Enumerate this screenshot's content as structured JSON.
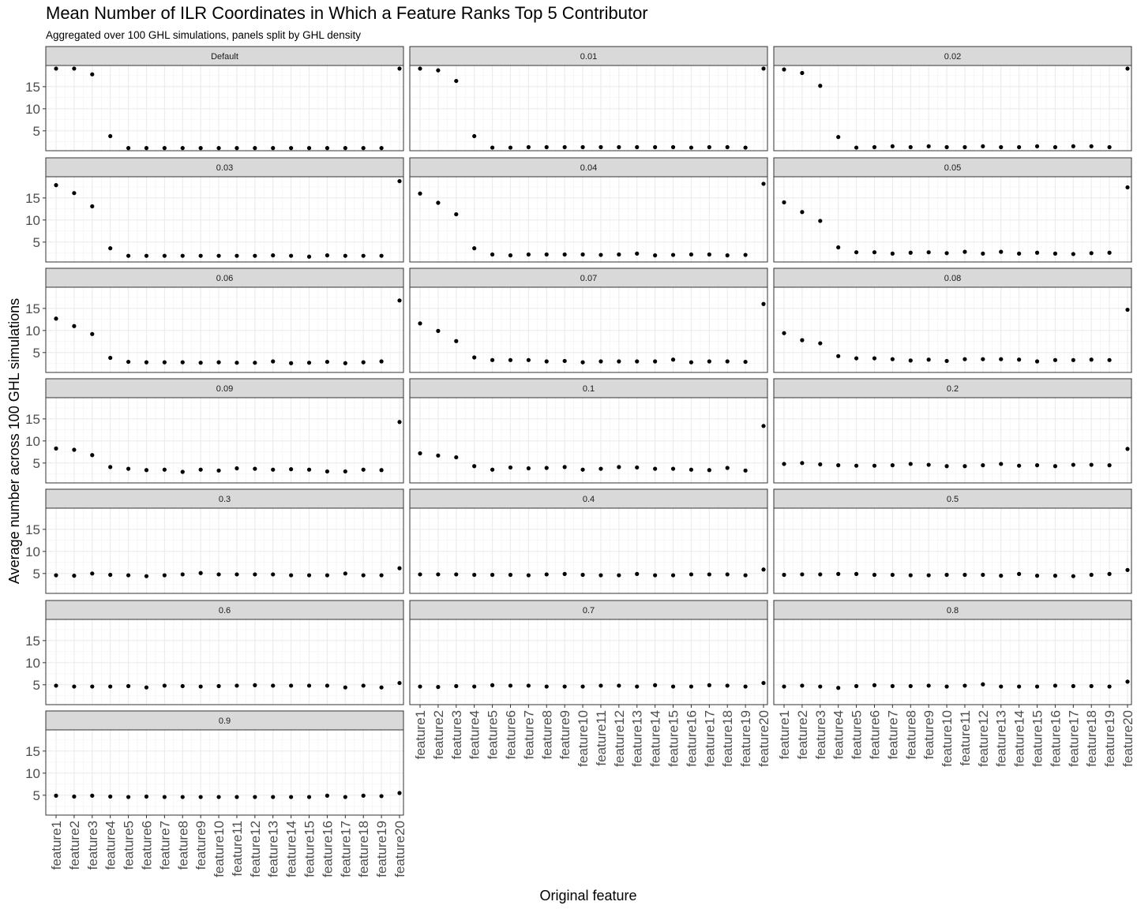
{
  "title": "Mean Number of ILR Coordinates in Which a Feature Ranks Top 5 Contributor",
  "subtitle": "Aggregated over 100 GHL simulations, panels split by GHL density",
  "chart_data": {
    "type": "scatter",
    "title": "Mean Number of ILR Coordinates in Which a Feature Ranks Top 5 Contributor",
    "subtitle": "Aggregated over 100 GHL simulations, panels split by GHL density",
    "xlabel": "Original feature",
    "ylabel": "Average number across 100 GHL simulations",
    "facet_columns": 3,
    "grid": true,
    "legend": "none",
    "ylim": [
      0.5,
      19.8
    ],
    "y_ticks": [
      5,
      10,
      15
    ],
    "categories": [
      "feature1",
      "feature2",
      "feature3",
      "feature4",
      "feature5",
      "feature6",
      "feature7",
      "feature8",
      "feature9",
      "feature10",
      "feature11",
      "feature12",
      "feature13",
      "feature14",
      "feature15",
      "feature16",
      "feature17",
      "feature18",
      "feature19",
      "feature20"
    ],
    "point_color": "#000000",
    "panels": [
      {
        "label": "Default",
        "values": [
          19.1,
          19.1,
          17.8,
          3.8,
          1.1,
          1.1,
          1.1,
          1.1,
          1.1,
          1.1,
          1.1,
          1.1,
          1.1,
          1.1,
          1.1,
          1.1,
          1.1,
          1.1,
          1.1,
          19.1
        ]
      },
      {
        "label": "0.01",
        "values": [
          19.1,
          18.7,
          16.3,
          3.8,
          1.2,
          1.2,
          1.3,
          1.3,
          1.3,
          1.3,
          1.3,
          1.3,
          1.3,
          1.3,
          1.3,
          1.2,
          1.3,
          1.3,
          1.2,
          19.1
        ]
      },
      {
        "label": "0.02",
        "values": [
          18.9,
          18.1,
          15.2,
          3.6,
          1.2,
          1.3,
          1.5,
          1.3,
          1.5,
          1.3,
          1.3,
          1.5,
          1.3,
          1.3,
          1.5,
          1.3,
          1.5,
          1.5,
          1.3,
          19.1
        ]
      },
      {
        "label": "0.03",
        "values": [
          17.9,
          16.1,
          13.1,
          3.6,
          1.9,
          1.9,
          1.9,
          1.9,
          1.9,
          1.9,
          1.9,
          1.9,
          2.0,
          1.9,
          1.7,
          2.0,
          1.9,
          1.9,
          1.9,
          18.8
        ]
      },
      {
        "label": "0.04",
        "values": [
          16.0,
          13.9,
          11.3,
          3.6,
          2.2,
          2.0,
          2.2,
          2.2,
          2.2,
          2.2,
          2.1,
          2.2,
          2.4,
          2.0,
          2.1,
          2.2,
          2.2,
          2.0,
          2.1,
          18.2
        ]
      },
      {
        "label": "0.05",
        "values": [
          14.0,
          11.8,
          9.8,
          3.8,
          2.7,
          2.7,
          2.4,
          2.6,
          2.7,
          2.5,
          2.8,
          2.4,
          2.8,
          2.4,
          2.6,
          2.4,
          2.3,
          2.5,
          2.6,
          17.4
        ]
      },
      {
        "label": "0.06",
        "values": [
          12.7,
          11.0,
          9.2,
          3.8,
          2.9,
          2.8,
          2.8,
          2.8,
          2.7,
          2.8,
          2.7,
          2.7,
          3.0,
          2.6,
          2.7,
          2.9,
          2.6,
          2.8,
          3.0,
          16.8
        ]
      },
      {
        "label": "0.07",
        "values": [
          11.6,
          9.9,
          7.6,
          3.9,
          3.3,
          3.3,
          3.3,
          3.0,
          3.1,
          2.8,
          3.0,
          3.0,
          3.0,
          3.0,
          3.4,
          2.8,
          3.0,
          3.0,
          2.9,
          16.0
        ]
      },
      {
        "label": "0.08",
        "values": [
          9.4,
          7.8,
          7.1,
          4.2,
          3.7,
          3.7,
          3.5,
          3.2,
          3.4,
          3.1,
          3.5,
          3.5,
          3.5,
          3.4,
          3.0,
          3.3,
          3.3,
          3.4,
          3.3,
          14.7
        ]
      },
      {
        "label": "0.09",
        "values": [
          8.3,
          8.0,
          6.8,
          4.1,
          3.7,
          3.4,
          3.5,
          3.0,
          3.5,
          3.3,
          3.8,
          3.7,
          3.5,
          3.6,
          3.5,
          3.1,
          3.1,
          3.5,
          3.4,
          14.3
        ]
      },
      {
        "label": "0.1",
        "values": [
          7.2,
          6.7,
          6.3,
          4.3,
          3.5,
          4.0,
          3.8,
          3.9,
          4.1,
          3.5,
          3.7,
          4.1,
          4.0,
          3.7,
          3.7,
          3.5,
          3.4,
          3.9,
          3.3,
          13.4
        ]
      },
      {
        "label": "0.2",
        "values": [
          4.8,
          5.0,
          4.7,
          4.5,
          4.4,
          4.4,
          4.5,
          4.8,
          4.6,
          4.3,
          4.3,
          4.5,
          4.8,
          4.4,
          4.5,
          4.3,
          4.6,
          4.6,
          4.5,
          8.2
        ]
      },
      {
        "label": "0.3",
        "values": [
          4.6,
          4.5,
          5.0,
          4.7,
          4.6,
          4.4,
          4.6,
          4.8,
          5.1,
          4.8,
          4.8,
          4.8,
          4.8,
          4.6,
          4.6,
          4.6,
          5.0,
          4.6,
          4.6,
          6.2
        ]
      },
      {
        "label": "0.4",
        "values": [
          4.8,
          4.8,
          4.8,
          4.7,
          4.7,
          4.7,
          4.6,
          4.8,
          4.9,
          4.7,
          4.6,
          4.6,
          4.9,
          4.6,
          4.6,
          4.8,
          4.8,
          4.8,
          4.6,
          5.9
        ]
      },
      {
        "label": "0.5",
        "values": [
          4.7,
          4.8,
          4.8,
          4.9,
          4.9,
          4.7,
          4.7,
          4.6,
          4.6,
          4.7,
          4.7,
          4.7,
          4.5,
          4.9,
          4.5,
          4.5,
          4.4,
          4.7,
          4.9,
          5.8
        ]
      },
      {
        "label": "0.6",
        "values": [
          4.8,
          4.6,
          4.6,
          4.6,
          4.7,
          4.4,
          4.8,
          4.7,
          4.6,
          4.7,
          4.8,
          4.9,
          4.8,
          4.8,
          4.8,
          4.8,
          4.4,
          4.8,
          4.4,
          5.4
        ]
      },
      {
        "label": "0.7",
        "values": [
          4.6,
          4.5,
          4.7,
          4.6,
          4.9,
          4.8,
          4.8,
          4.6,
          4.6,
          4.6,
          4.8,
          4.8,
          4.6,
          4.9,
          4.6,
          4.6,
          4.9,
          4.8,
          4.6,
          5.4
        ]
      },
      {
        "label": "0.8",
        "values": [
          4.6,
          4.8,
          4.6,
          4.3,
          4.7,
          4.9,
          4.7,
          4.7,
          4.8,
          4.6,
          4.8,
          5.1,
          4.6,
          4.6,
          4.6,
          4.8,
          4.7,
          4.7,
          4.6,
          5.7
        ]
      },
      {
        "label": "0.9",
        "values": [
          4.9,
          4.7,
          4.9,
          4.7,
          4.6,
          4.7,
          4.6,
          4.6,
          4.6,
          4.6,
          4.6,
          4.6,
          4.6,
          4.6,
          4.6,
          4.9,
          4.6,
          4.9,
          4.8,
          5.5
        ]
      }
    ]
  }
}
